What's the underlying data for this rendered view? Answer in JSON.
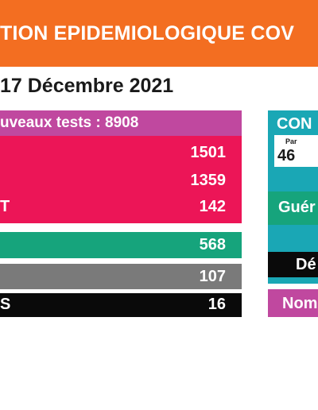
{
  "header": {
    "title": "TION EPIDEMIOLOGIQUE COV",
    "band_color": "#f36e21"
  },
  "date_line": "17 Décembre 2021",
  "left_table": {
    "tests_label": "uveaux tests : 8908",
    "red_values": [
      "1501",
      "1359",
      "142"
    ],
    "red_partial_label": "T",
    "green_value": "568",
    "gray_value": "107",
    "black_partial_label": "S",
    "black_value": "16"
  },
  "right_panel": {
    "title": "CON",
    "card_small_text": "Par",
    "card_number": "46",
    "green_label": "Guér",
    "black_label": "Dé",
    "magenta_label": "Nom"
  },
  "colors": {
    "orange": "#f36e21",
    "magenta": "#c0489f",
    "red": "#ec1557",
    "green": "#16a47c",
    "gray": "#7a7a7a",
    "black": "#0a0a0a",
    "teal": "#1aa7b5"
  }
}
